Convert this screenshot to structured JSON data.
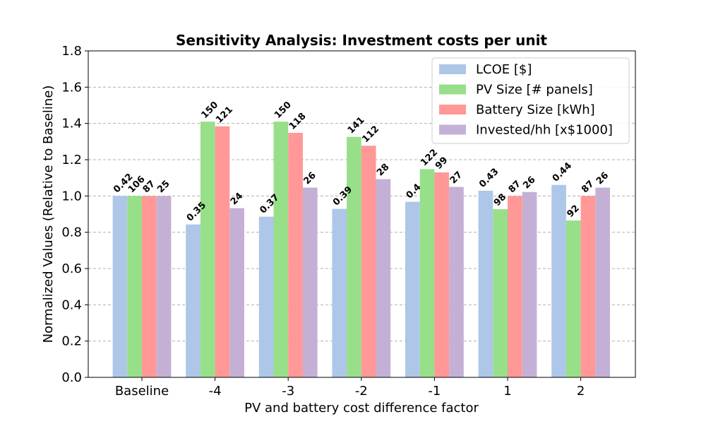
{
  "chart_data": {
    "type": "bar",
    "title": "Sensitivity Analysis: Investment costs per unit",
    "xlabel": "PV and battery cost difference factor",
    "ylabel": "Normalized Values (Relative to Baseline)",
    "ylim": [
      0,
      1.8
    ],
    "yticks": [
      "0.0",
      "0.2",
      "0.4",
      "0.6",
      "0.8",
      "1.0",
      "1.2",
      "1.4",
      "1.6",
      "1.8"
    ],
    "grid": "y-dashed",
    "legend_position": "top-right",
    "categories": [
      "Baseline",
      "-4",
      "-3",
      "-2",
      "-1",
      "1",
      "2"
    ],
    "series": [
      {
        "name": "LCOE [$]",
        "color": "#aec7e8",
        "values": [
          1.0,
          0.843,
          0.886,
          0.929,
          0.968,
          1.029,
          1.061
        ],
        "labels": [
          "0.42",
          "0.35",
          "0.37",
          "0.39",
          "0.4",
          "0.43",
          "0.44"
        ]
      },
      {
        "name": "PV Size [# panels]",
        "color": "#98df8a",
        "values": [
          1.0,
          1.41,
          1.41,
          1.326,
          1.148,
          0.927,
          0.865
        ],
        "labels": [
          "106",
          "150",
          "150",
          "141",
          "122",
          "98",
          "92"
        ]
      },
      {
        "name": "Battery Size [kWh]",
        "color": "#ff9896",
        "values": [
          1.0,
          1.384,
          1.348,
          1.277,
          1.13,
          1.0,
          1.0
        ],
        "labels": [
          "87",
          "121",
          "118",
          "112",
          "99",
          "87",
          "87"
        ]
      },
      {
        "name": "Invested/hh [x$1000]",
        "color": "#c5b0d5",
        "values": [
          1.0,
          0.933,
          1.046,
          1.093,
          1.05,
          1.022,
          1.046
        ],
        "labels": [
          "25",
          "24",
          "26",
          "28",
          "27",
          "26",
          "26"
        ]
      }
    ]
  }
}
